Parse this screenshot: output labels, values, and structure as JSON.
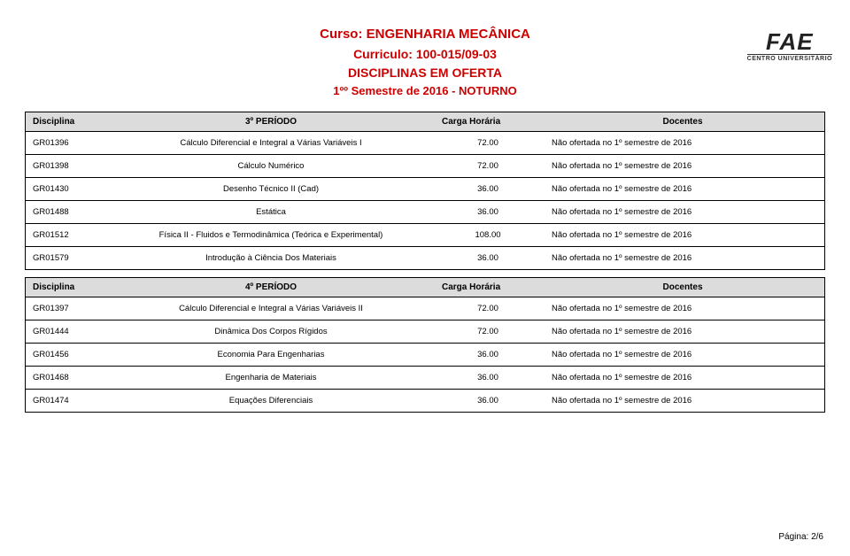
{
  "logo": {
    "main": "FAE",
    "sub": "CENTRO UNIVERSITÁRIO"
  },
  "header": {
    "line1": "Curso: ENGENHARIA MECÂNICA",
    "line2": "Curriculo: 100-015/09-03",
    "line3": "DISCIPLINAS EM OFERTA",
    "line4": "1ºº Semestre de 2016 - NOTURNO"
  },
  "column_labels": {
    "disciplina": "Disciplina",
    "carga": "Carga Horária",
    "docentes": "Docentes"
  },
  "period3": {
    "label": "3º PERÍODO",
    "rows": [
      {
        "code": "GR01396",
        "name": "Cálculo Diferencial e Integral a Várias Variáveis I",
        "hours": "72.00",
        "note": "Não ofertada no 1º semestre de 2016"
      },
      {
        "code": "GR01398",
        "name": "Cálculo Numérico",
        "hours": "72.00",
        "note": "Não ofertada no 1º semestre de 2016"
      },
      {
        "code": "GR01430",
        "name": "Desenho Técnico II (Cad)",
        "hours": "36.00",
        "note": "Não ofertada no 1º semestre de 2016"
      },
      {
        "code": "GR01488",
        "name": "Estática",
        "hours": "36.00",
        "note": "Não ofertada no 1º semestre de 2016"
      },
      {
        "code": "GR01512",
        "name": "Física II - Fluidos e Termodinâmica (Teórica e Experimental)",
        "hours": "108.00",
        "note": "Não ofertada no 1º semestre de 2016"
      },
      {
        "code": "GR01579",
        "name": "Introdução à Ciência Dos Materiais",
        "hours": "36.00",
        "note": "Não ofertada no 1º semestre de 2016"
      }
    ]
  },
  "period4": {
    "label": "4º PERÍODO",
    "rows": [
      {
        "code": "GR01397",
        "name": "Cálculo Diferencial e Integral a Várias Variáveis II",
        "hours": "72.00",
        "note": "Não ofertada no 1º semestre de 2016"
      },
      {
        "code": "GR01444",
        "name": "Dinâmica Dos Corpos Rígidos",
        "hours": "72.00",
        "note": "Não ofertada no 1º semestre de 2016"
      },
      {
        "code": "GR01456",
        "name": "Economia Para Engenharias",
        "hours": "36.00",
        "note": "Não ofertada no 1º semestre de 2016"
      },
      {
        "code": "GR01468",
        "name": "Engenharia de Materiais",
        "hours": "36.00",
        "note": "Não ofertada no 1º semestre de 2016"
      },
      {
        "code": "GR01474",
        "name": "Equações Diferenciais",
        "hours": "36.00",
        "note": "Não ofertada no 1º semestre de 2016"
      }
    ]
  },
  "footer": {
    "page": "Página: 2/6"
  }
}
